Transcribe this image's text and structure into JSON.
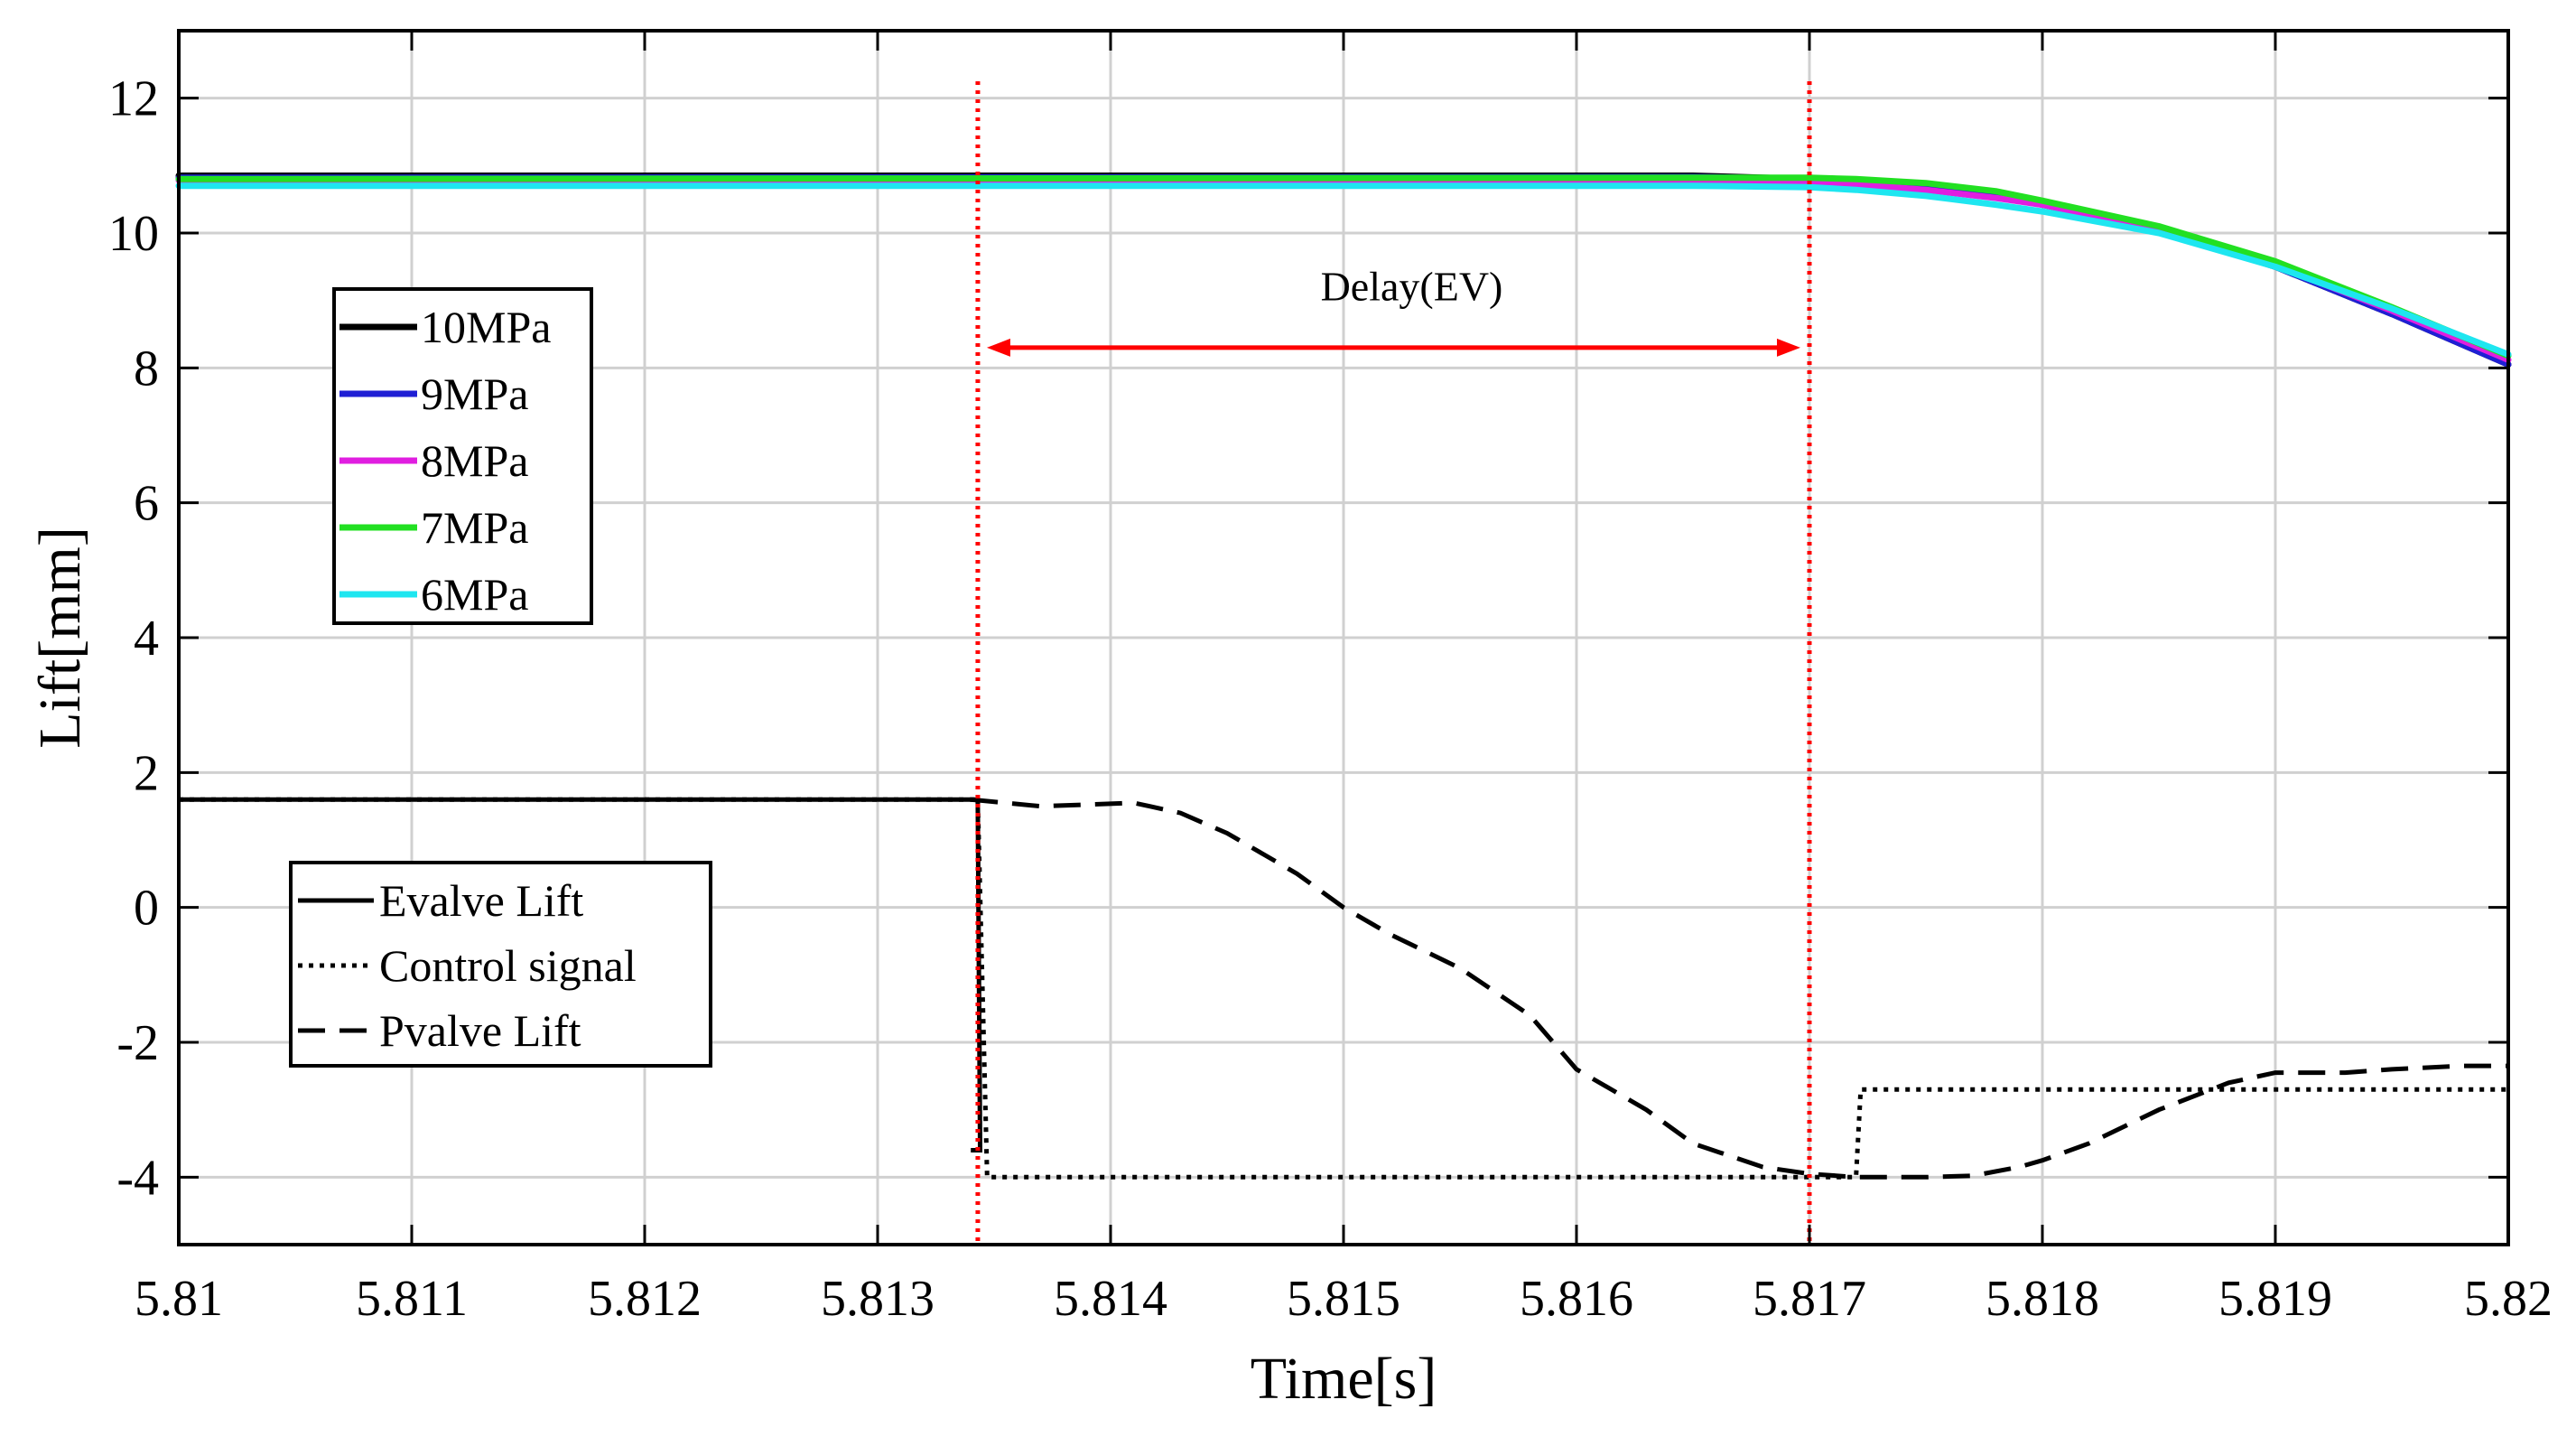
{
  "chart_data": {
    "type": "line",
    "xlabel": "Time[s]",
    "ylabel": "Lift[mm]",
    "xlim": [
      5.81,
      5.82
    ],
    "ylim": [
      -5,
      13
    ],
    "xticks": [
      5.81,
      5.811,
      5.812,
      5.813,
      5.814,
      5.815,
      5.816,
      5.817,
      5.818,
      5.819,
      5.82
    ],
    "xtick_labels": [
      "5.81",
      "5.811",
      "5.812",
      "5.813",
      "5.814",
      "5.815",
      "5.816",
      "5.817",
      "5.818",
      "5.819",
      "5.82"
    ],
    "yticks": [
      -4,
      -2,
      0,
      2,
      4,
      6,
      8,
      10,
      12
    ],
    "ytick_labels": [
      "-4",
      "-2",
      "0",
      "2",
      "4",
      "6",
      "8",
      "10",
      "12"
    ],
    "grid": true,
    "pressure_legend_position": "upper-left",
    "signal_legend_position": "lower-left",
    "pressure_series": [
      {
        "name": "10MPa",
        "color": "#000000",
        "x": [
          5.81,
          5.8165,
          5.817,
          5.8172,
          5.8175,
          5.8178,
          5.818,
          5.8185,
          5.819,
          5.8195,
          5.82
        ],
        "y": [
          10.85,
          10.85,
          10.8,
          10.78,
          10.68,
          10.55,
          10.42,
          10.05,
          9.5,
          8.8,
          8.05
        ]
      },
      {
        "name": "9MPa",
        "color": "#1f1fd4",
        "x": [
          5.81,
          5.8165,
          5.817,
          5.8172,
          5.8175,
          5.8178,
          5.818,
          5.8185,
          5.819,
          5.8195,
          5.82
        ],
        "y": [
          10.82,
          10.83,
          10.8,
          10.78,
          10.7,
          10.56,
          10.44,
          10.06,
          9.5,
          8.8,
          8.05
        ]
      },
      {
        "name": "8MPa",
        "color": "#e01ee0",
        "x": [
          5.81,
          5.8165,
          5.817,
          5.8172,
          5.8175,
          5.8178,
          5.818,
          5.8185,
          5.819,
          5.8195,
          5.82
        ],
        "y": [
          10.78,
          10.78,
          10.75,
          10.72,
          10.64,
          10.52,
          10.42,
          10.05,
          9.52,
          8.85,
          8.12
        ]
      },
      {
        "name": "7MPa",
        "color": "#22e022",
        "x": [
          5.81,
          5.8165,
          5.817,
          5.8172,
          5.8175,
          5.8178,
          5.818,
          5.8185,
          5.819,
          5.8195,
          5.82
        ],
        "y": [
          10.8,
          10.82,
          10.82,
          10.8,
          10.74,
          10.62,
          10.48,
          10.1,
          9.58,
          8.9,
          8.18
        ]
      },
      {
        "name": "6MPa",
        "color": "#1ee6f0",
        "x": [
          5.81,
          5.8165,
          5.817,
          5.8172,
          5.8175,
          5.8178,
          5.818,
          5.8185,
          5.819,
          5.8195,
          5.82
        ],
        "y": [
          10.7,
          10.7,
          10.68,
          10.64,
          10.55,
          10.42,
          10.32,
          10.0,
          9.5,
          8.88,
          8.2
        ]
      }
    ],
    "signal_series": [
      {
        "name": "Evalve Lift",
        "style": "solid",
        "x": [
          5.81,
          5.81343,
          5.81344,
          5.8134
        ],
        "y": [
          1.6,
          1.6,
          -3.6,
          -3.6
        ]
      },
      {
        "name": "Control signal",
        "style": "dotted",
        "x": [
          5.81,
          5.81343,
          5.81347,
          5.8172,
          5.81722,
          5.82
        ],
        "y": [
          1.6,
          1.6,
          -4.0,
          -4.0,
          -2.7,
          -2.7
        ]
      },
      {
        "name": "Pvalve Lift",
        "style": "dashed",
        "x": [
          5.8134,
          5.8137,
          5.8141,
          5.8143,
          5.8145,
          5.8148,
          5.815,
          5.8152,
          5.8155,
          5.8158,
          5.816,
          5.8163,
          5.8165,
          5.8168,
          5.817,
          5.8172,
          5.8175,
          5.8177,
          5.8179,
          5.818,
          5.8182,
          5.8185,
          5.8188,
          5.819,
          5.8193,
          5.8195,
          5.8198,
          5.82
        ],
        "y": [
          1.6,
          1.5,
          1.55,
          1.4,
          1.1,
          0.5,
          0.0,
          -0.4,
          -0.9,
          -1.6,
          -2.4,
          -3.0,
          -3.5,
          -3.85,
          -3.95,
          -4.0,
          -4.0,
          -3.98,
          -3.85,
          -3.75,
          -3.5,
          -3.0,
          -2.6,
          -2.45,
          -2.45,
          -2.4,
          -2.35,
          -2.35
        ]
      }
    ],
    "vertical_markers": [
      5.81343,
      5.817
    ],
    "marker_top_y": 12.25,
    "annotation": {
      "text": "Delay(EV)",
      "x_start": 5.81343,
      "x_end": 5.817,
      "arrow_y": 8.3,
      "text_y": 9.0,
      "color": "#ff0000"
    }
  }
}
